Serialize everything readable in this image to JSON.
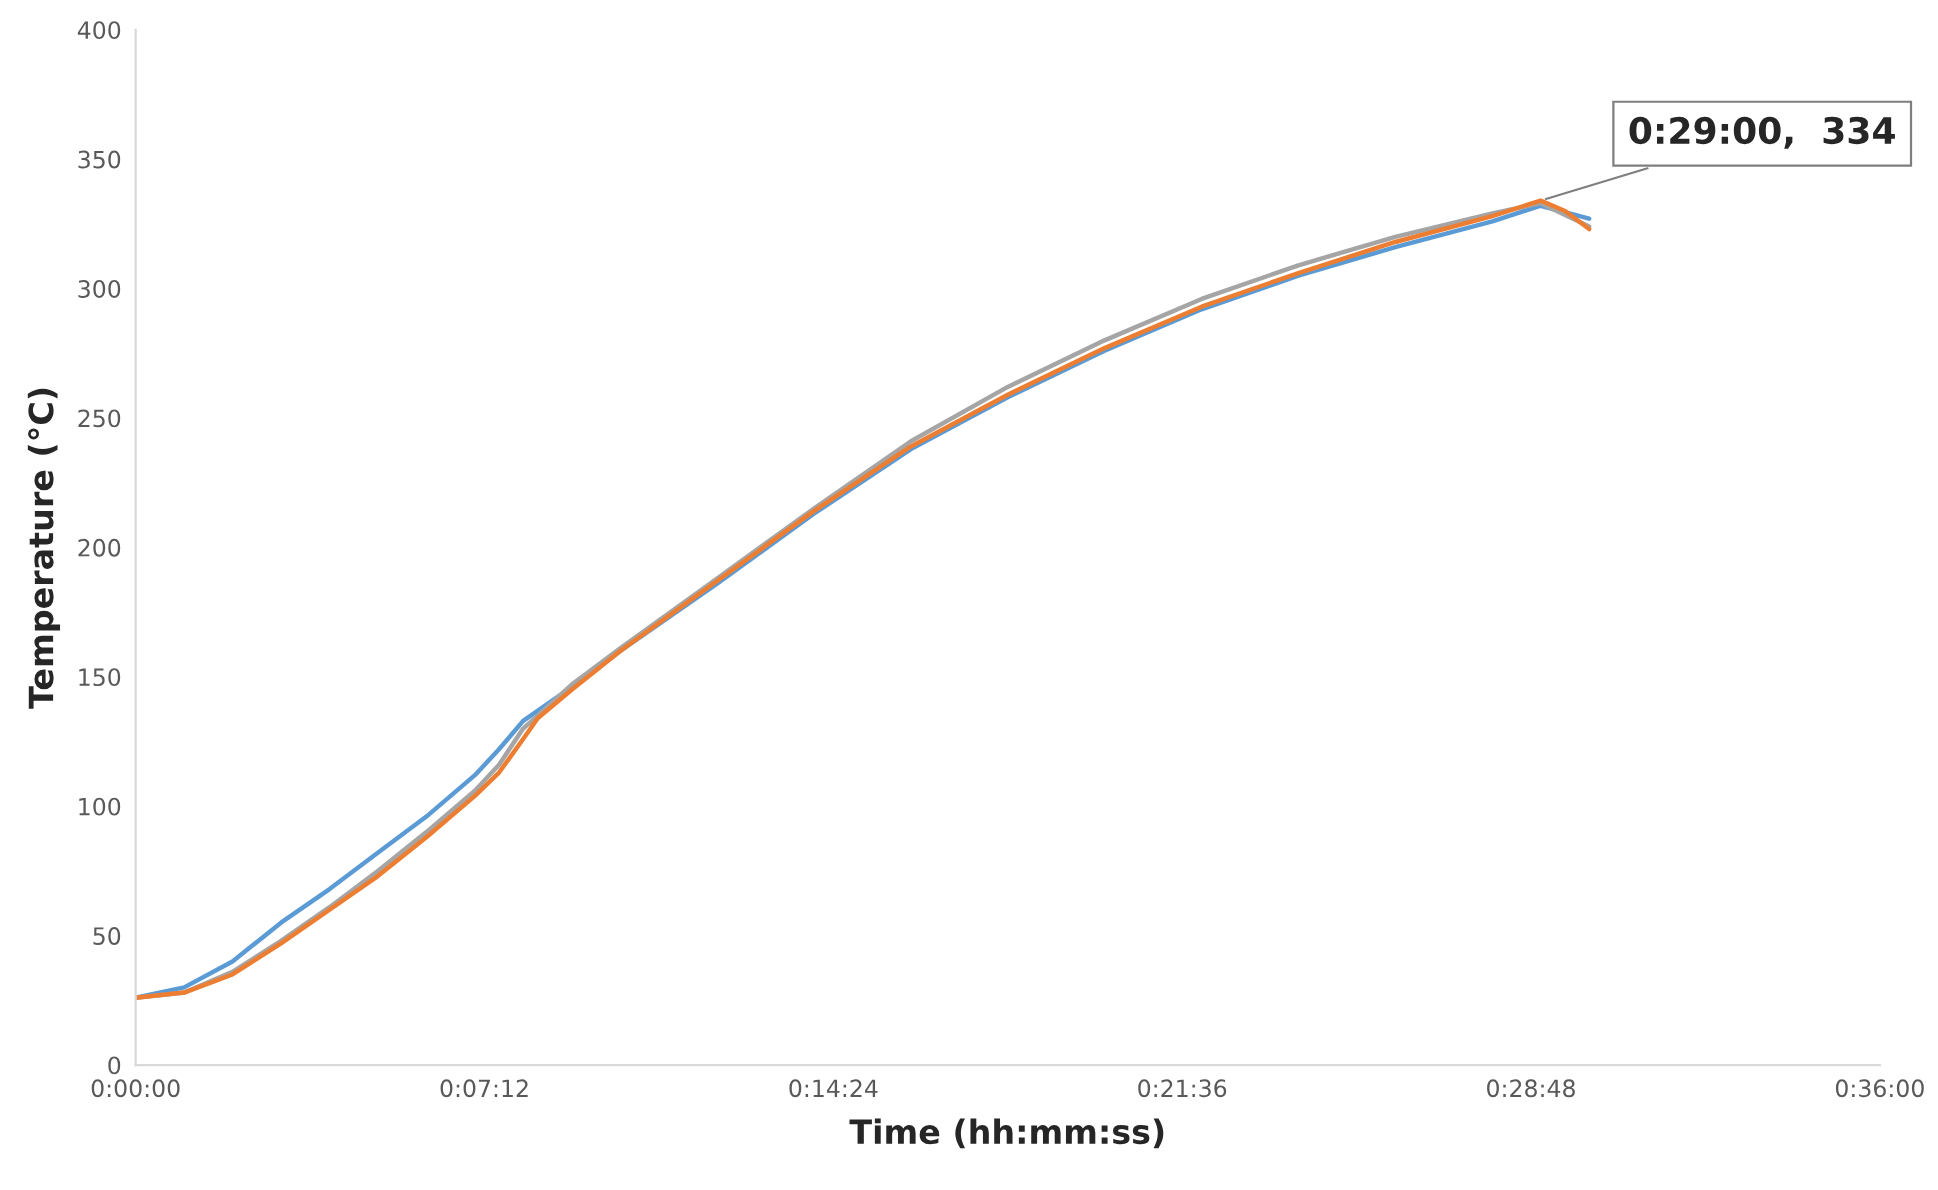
{
  "chart_data": {
    "type": "line",
    "xlabel": "Time (hh:mm:ss)",
    "ylabel": "Temperature (°C)",
    "xlim": [
      0,
      0.6
    ],
    "xticks": [
      {
        "value": 0,
        "label": "0:00:00"
      },
      {
        "value": 0.12,
        "label": "0:07:12"
      },
      {
        "value": 0.24,
        "label": "0:14:24"
      },
      {
        "value": 0.36,
        "label": "0:21:36"
      },
      {
        "value": 0.48,
        "label": "0:28:48"
      },
      {
        "value": 0.6,
        "label": "0:36:00"
      }
    ],
    "ylim": [
      0,
      400
    ],
    "yticks": [
      0,
      50,
      100,
      150,
      200,
      250,
      300,
      350,
      400
    ],
    "grid": false,
    "legend": false,
    "marker": "none",
    "line_style": "solid",
    "series": [
      {
        "color": "#5b9bd5",
        "x": [
          0,
          0.0167,
          0.0333,
          0.05,
          0.0667,
          0.0833,
          0.1,
          0.1167,
          0.125,
          0.1333,
          0.15,
          0.1667,
          0.2,
          0.2333,
          0.2667,
          0.3,
          0.3333,
          0.3667,
          0.4,
          0.4333,
          0.4667,
          0.4833,
          0.5
        ],
        "values": [
          26,
          30,
          40,
          55,
          68,
          82,
          96,
          112,
          122,
          133,
          146,
          160,
          186,
          213,
          238,
          258,
          276,
          292,
          305,
          316,
          326,
          332,
          327
        ]
      },
      {
        "color": "#a5a5a5",
        "x": [
          0,
          0.0167,
          0.0333,
          0.05,
          0.0667,
          0.0833,
          0.1,
          0.1167,
          0.125,
          0.1333,
          0.1383,
          0.15,
          0.1667,
          0.2,
          0.2333,
          0.2667,
          0.3,
          0.3333,
          0.3667,
          0.4,
          0.4333,
          0.4667,
          0.4833,
          0.5
        ],
        "values": [
          26,
          28,
          36,
          48,
          61,
          75,
          90,
          106,
          116,
          130,
          135,
          147,
          161,
          188,
          215,
          241,
          262,
          280,
          296,
          309,
          320,
          329,
          333,
          324
        ]
      },
      {
        "color": "#ed7d31",
        "x": [
          0,
          0.0167,
          0.0333,
          0.05,
          0.0667,
          0.0833,
          0.1,
          0.1167,
          0.125,
          0.1333,
          0.1383,
          0.15,
          0.1667,
          0.2,
          0.2333,
          0.2667,
          0.3,
          0.3333,
          0.3667,
          0.4,
          0.4333,
          0.4667,
          0.4833,
          0.4917,
          0.5
        ],
        "values": [
          26,
          28,
          35,
          47,
          60,
          73,
          88,
          104,
          113,
          126,
          134,
          145,
          160,
          187,
          214,
          239,
          259,
          277,
          293,
          306,
          318,
          328,
          334,
          330,
          323
        ]
      }
    ],
    "annotations": [
      {
        "text": "0:29:00,  334",
        "x": 0.4833,
        "y": 334
      }
    ]
  }
}
